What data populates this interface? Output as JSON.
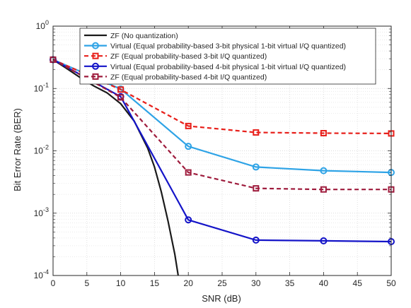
{
  "chart_data": {
    "type": "line",
    "xlabel": "SNR (dB)",
    "ylabel": "Bit Error Rate (BER)",
    "xlim": [
      0,
      50
    ],
    "ylim": [
      0.0001,
      1
    ],
    "yscale": "log",
    "grid": true,
    "legend_position": "top-right",
    "x_ticks": [
      "0",
      "5",
      "10",
      "15",
      "20",
      "25",
      "30",
      "35",
      "40",
      "45",
      "50"
    ],
    "y_ticks": [
      {
        "base": "10",
        "exp": "0"
      },
      {
        "base": "10",
        "exp": "-1"
      },
      {
        "base": "10",
        "exp": "-2"
      },
      {
        "base": "10",
        "exp": "-3"
      },
      {
        "base": "10",
        "exp": "-4"
      }
    ],
    "series": [
      {
        "name": "ZF (No quantization)",
        "color": "#1a1a1a",
        "dash": "solid",
        "marker": "none",
        "x": [
          0,
          2,
          4,
          6,
          8,
          10,
          12,
          14,
          15,
          16,
          17,
          18,
          18.5
        ],
        "y": [
          0.29,
          0.21,
          0.15,
          0.11,
          0.085,
          0.057,
          0.03,
          0.011,
          0.0055,
          0.0022,
          0.00075,
          0.00022,
          0.0001
        ]
      },
      {
        "name": "Virtual (Equal probability-based 3-bit physical 1-bit virtual  I/Q quantized)",
        "color": "#2ea3e6",
        "dash": "solid",
        "marker": "circle",
        "x": [
          0,
          10,
          20,
          30,
          40,
          50
        ],
        "y": [
          0.29,
          0.098,
          0.0118,
          0.0055,
          0.0048,
          0.0045
        ]
      },
      {
        "name": "ZF (Equal probability-based 3-bit I/Q quantized)",
        "color": "#e8201b",
        "dash": "dashed",
        "marker": "square",
        "x": [
          0,
          10,
          20,
          30,
          40,
          50
        ],
        "y": [
          0.29,
          0.096,
          0.025,
          0.0197,
          0.0192,
          0.019
        ]
      },
      {
        "name": "Virtual (Equal probability-based 4-bit physical 1-bit virtual  I/Q quantized)",
        "color": "#1414c8",
        "dash": "solid",
        "marker": "circle",
        "x": [
          0,
          10,
          20,
          30,
          40,
          50
        ],
        "y": [
          0.29,
          0.074,
          0.00078,
          0.00037,
          0.00036,
          0.00035
        ]
      },
      {
        "name": "ZF (Equal probability-based 4-bit I/Q quantized)",
        "color": "#9e1b3c",
        "dash": "dashed",
        "marker": "square",
        "x": [
          0,
          10,
          20,
          30,
          40,
          50
        ],
        "y": [
          0.29,
          0.072,
          0.0045,
          0.0025,
          0.0024,
          0.0024
        ]
      }
    ]
  }
}
